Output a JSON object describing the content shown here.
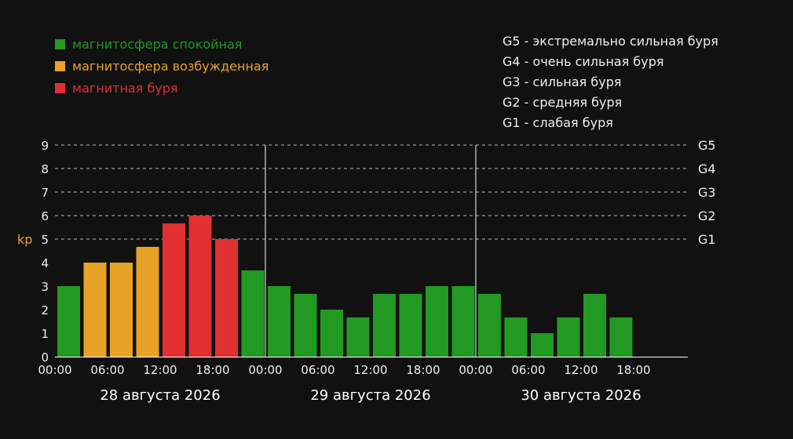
{
  "legend": {
    "items": [
      {
        "label": "магнитосфера спокойная",
        "color": "#229922"
      },
      {
        "label": "магнитосфера возбужденная",
        "color": "#e8a228"
      },
      {
        "label": "магнитная буря",
        "color": "#e03030"
      }
    ]
  },
  "storm_scale": [
    "G5 - экстремально сильная буря",
    "G4 - очень сильная буря",
    "G3 - сильная буря",
    "G2 - средняя буря",
    "G1 - слабая буря"
  ],
  "chart_data": {
    "type": "bar",
    "ylabel": "kp",
    "ylim": [
      0,
      9
    ],
    "yticks": [
      "0",
      "1",
      "2",
      "3",
      "4",
      "5",
      "6",
      "7",
      "8",
      "9"
    ],
    "grid_lines": [
      5,
      6,
      7,
      8,
      9
    ],
    "g_levels": [
      {
        "label": "G1",
        "value": 5
      },
      {
        "label": "G2",
        "value": 6
      },
      {
        "label": "G3",
        "value": 7
      },
      {
        "label": "G4",
        "value": 8
      },
      {
        "label": "G5",
        "value": 9
      }
    ],
    "days": [
      "28 августа 2026",
      "29 августа 2026",
      "30 августа 2026"
    ],
    "time_ticks": [
      "00:00",
      "06:00",
      "12:00",
      "18:00"
    ],
    "bars_per_day": 8,
    "values": [
      3,
      4,
      4,
      4.67,
      5.67,
      6,
      5,
      3.67,
      3,
      2.67,
      2,
      1.67,
      2.67,
      2.67,
      3,
      3,
      2.67,
      1.67,
      1,
      1.67,
      2.67,
      1.67
    ],
    "colors": {
      "quiet": "#229922",
      "active": "#e8a228",
      "storm": "#e03030"
    },
    "text_color": "#eeeeee",
    "label_color": "#e8a228"
  }
}
